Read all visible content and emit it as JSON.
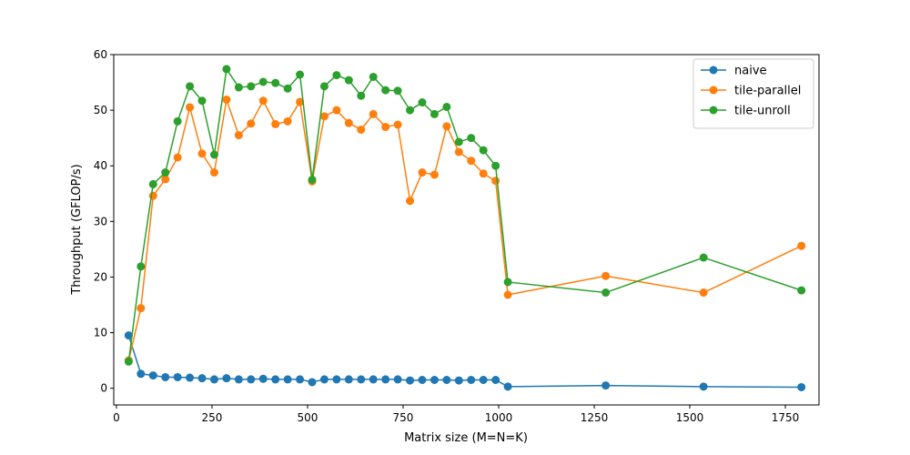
{
  "chart_data": {
    "type": "line",
    "title": "",
    "xlabel": "Matrix size (M=N=K)",
    "ylabel": "Throughput (GFLOP/s)",
    "xlim": [
      -7,
      1838
    ],
    "ylim": [
      -3,
      60
    ],
    "xticks": [
      0,
      250,
      500,
      750,
      1000,
      1250,
      1500,
      1750
    ],
    "yticks": [
      0,
      10,
      20,
      30,
      40,
      50,
      60
    ],
    "xtick_labels": [
      "0",
      "250",
      "500",
      "750",
      "1000",
      "1250",
      "1500",
      "1750"
    ],
    "ytick_labels": [
      "0",
      "10",
      "20",
      "30",
      "40",
      "50",
      "60"
    ],
    "grid": false,
    "legend_position": "top-right",
    "x": [
      32,
      64,
      96,
      128,
      160,
      192,
      224,
      256,
      288,
      320,
      352,
      384,
      416,
      448,
      480,
      512,
      544,
      576,
      608,
      640,
      672,
      704,
      736,
      768,
      800,
      832,
      864,
      896,
      928,
      960,
      992,
      1024,
      1280,
      1536,
      1792
    ],
    "series": [
      {
        "name": "naive",
        "color": "#1f77b4",
        "values": [
          9.5,
          2.6,
          2.3,
          2.0,
          2.0,
          1.9,
          1.8,
          1.6,
          1.8,
          1.6,
          1.6,
          1.7,
          1.6,
          1.6,
          1.6,
          1.1,
          1.6,
          1.6,
          1.6,
          1.6,
          1.6,
          1.6,
          1.6,
          1.4,
          1.5,
          1.5,
          1.5,
          1.4,
          1.5,
          1.5,
          1.5,
          0.3,
          0.5,
          0.3,
          0.2
        ]
      },
      {
        "name": "tile-parallel",
        "color": "#ff7f0e",
        "values": [
          5.0,
          14.4,
          34.6,
          37.6,
          41.5,
          50.5,
          42.2,
          38.8,
          51.9,
          45.5,
          47.6,
          51.7,
          47.5,
          48.0,
          51.5,
          37.2,
          48.9,
          50.0,
          47.7,
          46.5,
          49.3,
          47.0,
          47.4,
          33.7,
          38.8,
          38.4,
          47.1,
          42.5,
          40.9,
          38.6,
          37.3,
          16.8,
          20.2,
          17.2,
          25.6
        ]
      },
      {
        "name": "tile-unroll",
        "color": "#2ca02c",
        "values": [
          4.8,
          21.9,
          36.7,
          38.8,
          48.0,
          54.3,
          51.7,
          42.0,
          57.4,
          54.1,
          54.3,
          55.1,
          54.9,
          53.9,
          56.4,
          37.5,
          54.3,
          56.3,
          55.4,
          52.6,
          56.0,
          53.6,
          53.5,
          50.0,
          51.4,
          49.3,
          50.6,
          44.3,
          45.0,
          42.8,
          40.0,
          19.1,
          17.2,
          23.5,
          17.6
        ]
      }
    ]
  }
}
